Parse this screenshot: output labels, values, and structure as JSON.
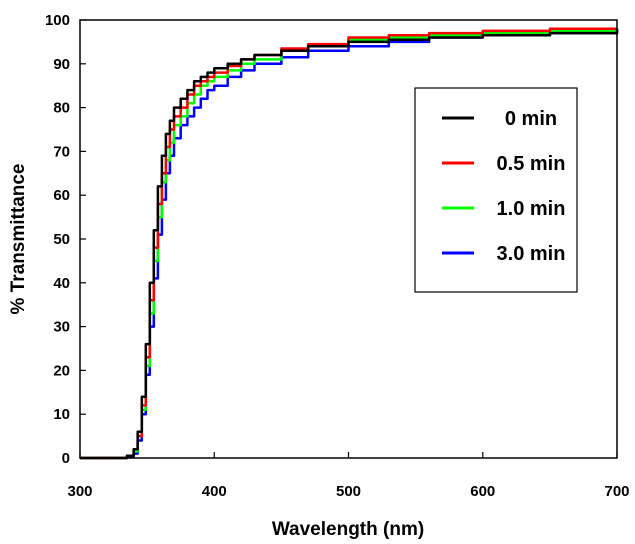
{
  "chart_data": {
    "type": "line",
    "title": "",
    "xlabel": "Wavelength (nm)",
    "ylabel": "% Transmittance",
    "xlim": [
      300,
      700
    ],
    "ylim": [
      0,
      100
    ],
    "xticks": [
      "300",
      "400",
      "500",
      "600",
      "700"
    ],
    "yticks": [
      "0",
      "10",
      "20",
      "30",
      "40",
      "50",
      "60",
      "70",
      "80",
      "90",
      "100"
    ],
    "grid": false,
    "legend_position": "top-right",
    "series": [
      {
        "name": "0 min",
        "color": "#000000",
        "x": [
          300,
          330,
          335,
          340,
          343,
          346,
          349,
          352,
          355,
          358,
          361,
          364,
          367,
          370,
          375,
          380,
          385,
          390,
          395,
          400,
          410,
          420,
          430,
          450,
          470,
          500,
          530,
          560,
          600,
          650,
          700
        ],
        "y": [
          0,
          0,
          0.5,
          2,
          6,
          14,
          26,
          40,
          52,
          62,
          69,
          74,
          77,
          80,
          82,
          84,
          86,
          87,
          88,
          89,
          90,
          91,
          92,
          93,
          94,
          95,
          95.5,
          96,
          96.5,
          97,
          98
        ]
      },
      {
        "name": "0.5 min",
        "color": "#ff0000",
        "x": [
          300,
          330,
          335,
          340,
          343,
          346,
          349,
          352,
          355,
          358,
          361,
          364,
          367,
          370,
          375,
          380,
          385,
          390,
          395,
          400,
          410,
          420,
          430,
          450,
          470,
          500,
          530,
          560,
          600,
          650,
          700
        ],
        "y": [
          0,
          0,
          0.5,
          2,
          5,
          12,
          23,
          36,
          48,
          58,
          65,
          71,
          75,
          78,
          80,
          83,
          85,
          86,
          87,
          88,
          89.5,
          91,
          92,
          93.5,
          94.5,
          96,
          96.5,
          97,
          97.5,
          98,
          98
        ]
      },
      {
        "name": "1.0 min",
        "color": "#00ff00",
        "x": [
          300,
          330,
          335,
          340,
          343,
          346,
          349,
          352,
          355,
          358,
          361,
          364,
          367,
          370,
          375,
          380,
          385,
          390,
          395,
          400,
          410,
          420,
          430,
          450,
          470,
          500,
          530,
          560,
          600,
          650,
          700
        ],
        "y": [
          0,
          0,
          0.5,
          1.5,
          5,
          11,
          21,
          33,
          45,
          55,
          63,
          68,
          72,
          76,
          78,
          81,
          83,
          85,
          86,
          87,
          88.5,
          90,
          91,
          93,
          94,
          95.5,
          96,
          96.5,
          97,
          97.5,
          98
        ]
      },
      {
        "name": "3.0 min",
        "color": "#0000ff",
        "x": [
          300,
          330,
          335,
          340,
          343,
          346,
          349,
          352,
          355,
          358,
          361,
          364,
          367,
          370,
          375,
          380,
          385,
          390,
          395,
          400,
          410,
          420,
          430,
          450,
          470,
          500,
          530,
          560,
          600,
          650,
          700
        ],
        "y": [
          0,
          0,
          0.3,
          1,
          4,
          10,
          19,
          30,
          41,
          51,
          59,
          65,
          69,
          73,
          76,
          78,
          80,
          82,
          84,
          85,
          87,
          88.5,
          90,
          91.5,
          93,
          94,
          95,
          96,
          96.5,
          97,
          98
        ]
      }
    ]
  }
}
